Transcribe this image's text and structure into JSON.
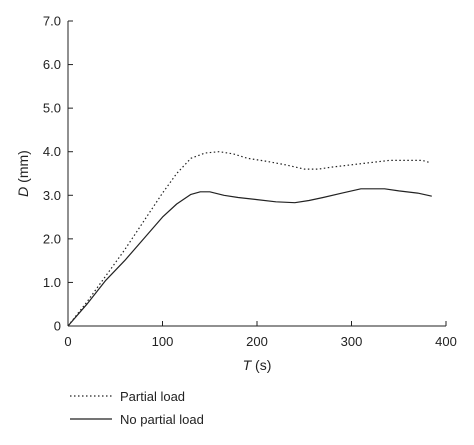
{
  "chart_data": {
    "type": "line",
    "xlabel_var": "T",
    "xlabel_unit": " (s)",
    "ylabel_var": "D",
    "ylabel_unit": " (mm)",
    "xlim": [
      0,
      400
    ],
    "ylim": [
      0,
      7.0
    ],
    "x_ticks": [
      0,
      100,
      200,
      300,
      400
    ],
    "x_tick_labels": [
      "0",
      "100",
      "200",
      "300",
      "400"
    ],
    "y_ticks": [
      0,
      1,
      2,
      3,
      4,
      5,
      6,
      7
    ],
    "y_tick_labels": [
      "0",
      "1.0",
      "2.0",
      "3.0",
      "4.0",
      "5.0",
      "6.0",
      "7.0"
    ],
    "grid": false,
    "legend_position": "bottom-left",
    "series": [
      {
        "name": "Partial load",
        "style": "dotted",
        "color": "#222222",
        "points": [
          [
            0,
            0
          ],
          [
            20,
            0.55
          ],
          [
            40,
            1.15
          ],
          [
            60,
            1.75
          ],
          [
            80,
            2.4
          ],
          [
            100,
            3.05
          ],
          [
            115,
            3.5
          ],
          [
            130,
            3.85
          ],
          [
            145,
            3.97
          ],
          [
            160,
            4.0
          ],
          [
            175,
            3.95
          ],
          [
            190,
            3.85
          ],
          [
            210,
            3.78
          ],
          [
            230,
            3.7
          ],
          [
            250,
            3.6
          ],
          [
            265,
            3.6
          ],
          [
            280,
            3.65
          ],
          [
            300,
            3.7
          ],
          [
            320,
            3.75
          ],
          [
            340,
            3.8
          ],
          [
            360,
            3.8
          ],
          [
            375,
            3.8
          ],
          [
            383,
            3.75
          ]
        ]
      },
      {
        "name": "No partial load",
        "style": "solid",
        "color": "#222222",
        "points": [
          [
            0,
            0
          ],
          [
            20,
            0.5
          ],
          [
            40,
            1.05
          ],
          [
            60,
            1.5
          ],
          [
            80,
            2.0
          ],
          [
            100,
            2.5
          ],
          [
            115,
            2.8
          ],
          [
            130,
            3.02
          ],
          [
            140,
            3.08
          ],
          [
            150,
            3.08
          ],
          [
            165,
            3.0
          ],
          [
            180,
            2.95
          ],
          [
            200,
            2.9
          ],
          [
            220,
            2.85
          ],
          [
            240,
            2.83
          ],
          [
            255,
            2.88
          ],
          [
            270,
            2.95
          ],
          [
            290,
            3.05
          ],
          [
            310,
            3.15
          ],
          [
            335,
            3.15
          ],
          [
            350,
            3.1
          ],
          [
            370,
            3.05
          ],
          [
            385,
            2.98
          ]
        ]
      }
    ]
  }
}
